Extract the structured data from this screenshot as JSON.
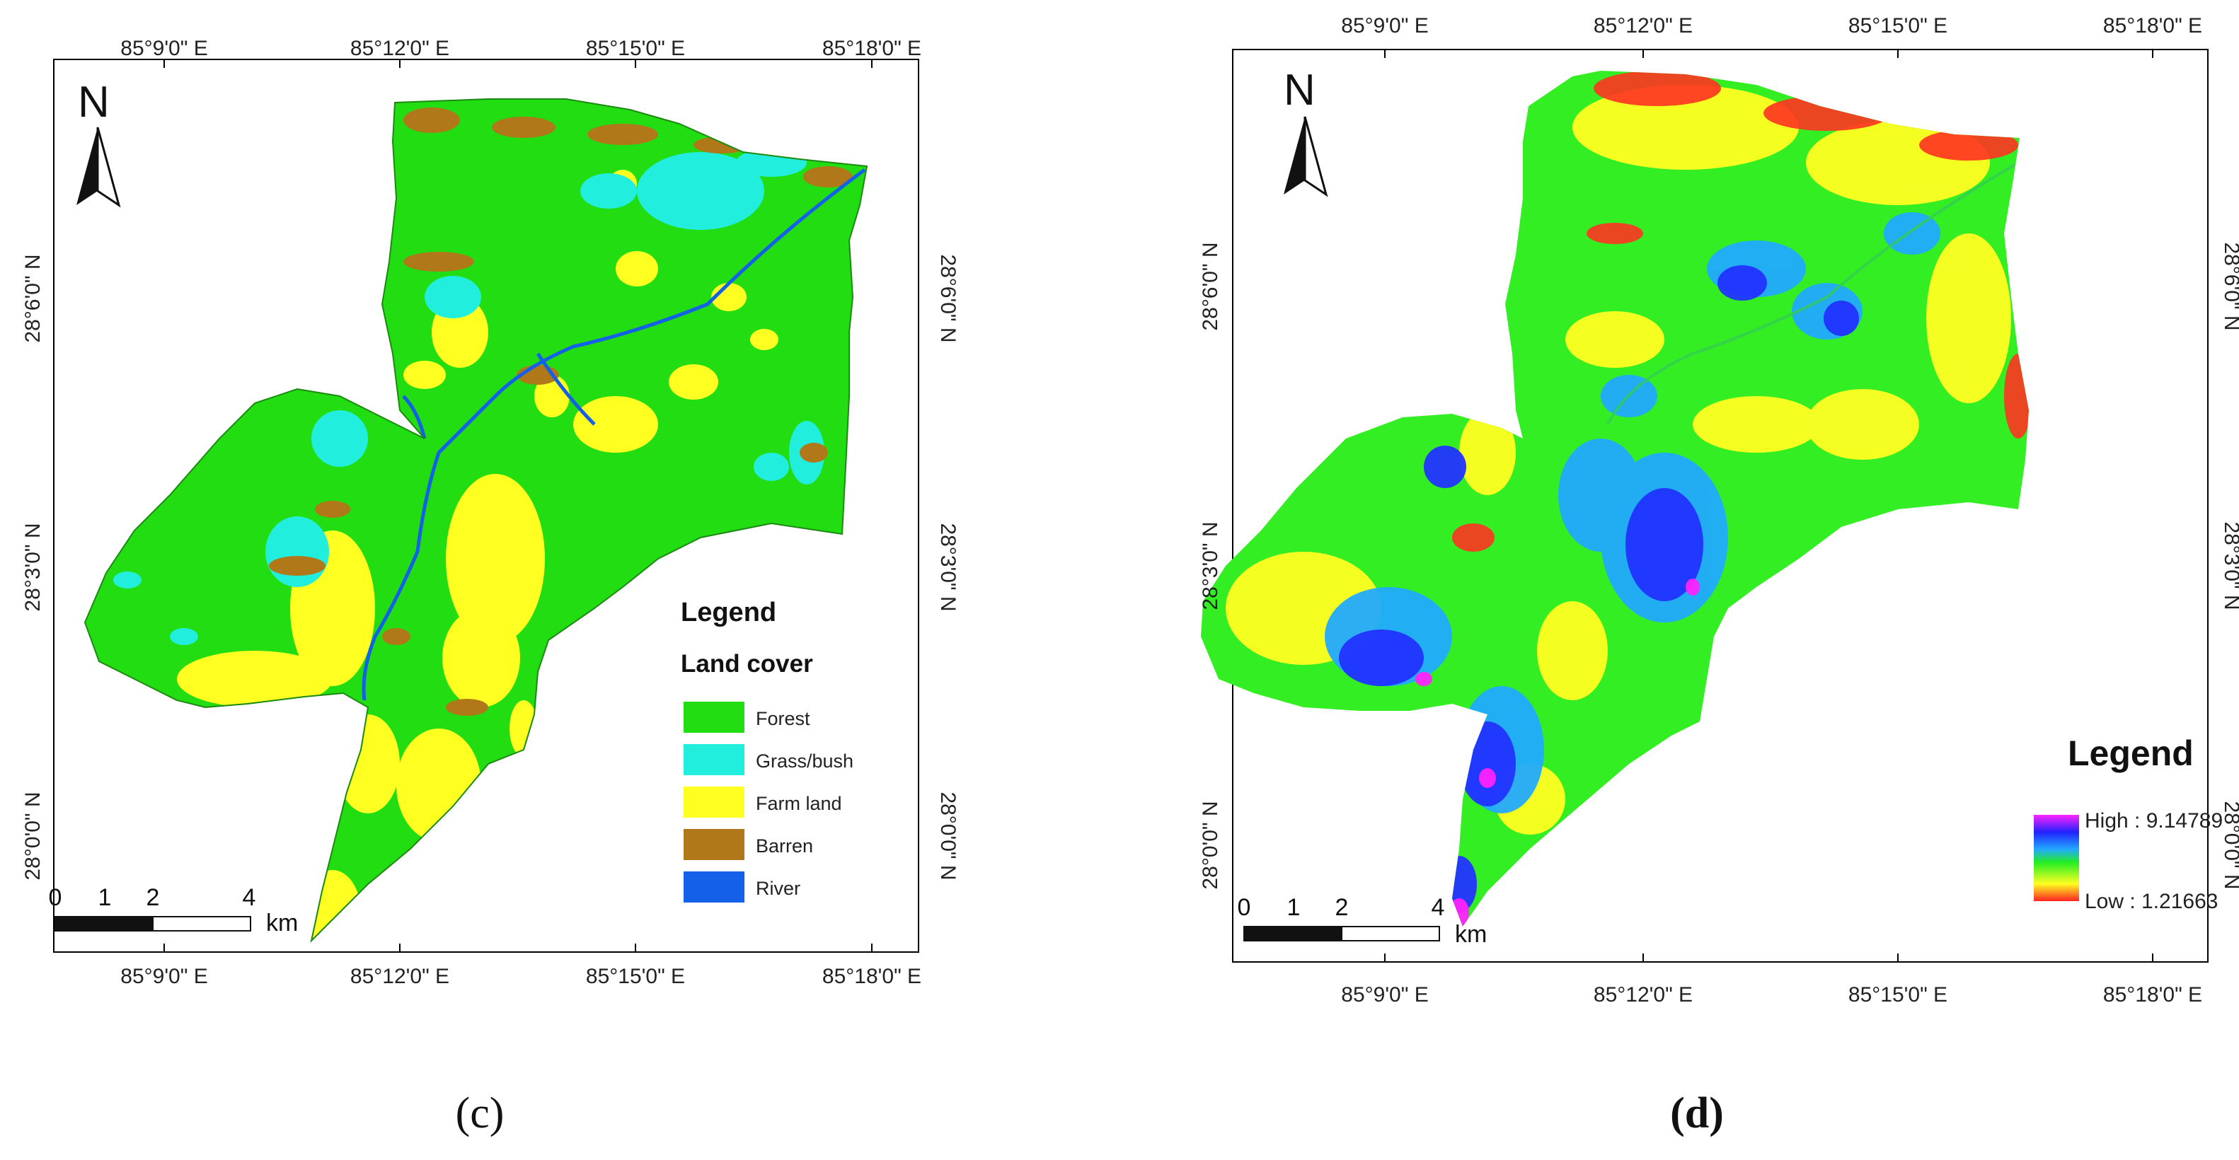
{
  "panel_c": {
    "label": "(c)",
    "north": "N",
    "legend": {
      "title": "Legend",
      "subtitle": "Land cover",
      "items": [
        {
          "label": "Forest",
          "color": "#22dd11"
        },
        {
          "label": "Grass/bush",
          "color": "#22eedd"
        },
        {
          "label": "Farm land",
          "color": "#ffff22"
        },
        {
          "label": "Barren",
          "color": "#b07818"
        },
        {
          "label": "River",
          "color": "#1560e8"
        }
      ]
    },
    "scale": {
      "ticks": [
        "0",
        "1",
        "2",
        "4"
      ],
      "unit": "km"
    },
    "axes": {
      "top": [
        "85°9'0\" E",
        "85°12'0\" E",
        "85°15'0\" E",
        "85°18'0\" E"
      ],
      "bottom": [
        "85°9'0\" E",
        "85°12'0\" E",
        "85°15'0\" E",
        "85°18'0\" E"
      ],
      "left": [
        "28°6'0\" N",
        "28°3'0\" N",
        "28°0'0\" N"
      ],
      "right": [
        "28°6'0\" N",
        "28°3'0\" N",
        "28°0'0\" N"
      ]
    }
  },
  "panel_d": {
    "label": "(d)",
    "north": "N",
    "legend": {
      "title": "Legend",
      "high": "High : 9.14789",
      "low": "Low : 1.21663",
      "gradient": [
        "#ff22ff",
        "#2222ff",
        "#22aaff",
        "#22ee22",
        "#ffff22",
        "#ff2222"
      ]
    },
    "scale": {
      "ticks": [
        "0",
        "1",
        "2",
        "4"
      ],
      "unit": "km"
    },
    "axes": {
      "top": [
        "85°9'0\" E",
        "85°12'0\" E",
        "85°15'0\" E",
        "85°18'0\" E"
      ],
      "bottom": [
        "85°9'0\" E",
        "85°12'0\" E",
        "85°15'0\" E",
        "85°18'0\" E"
      ],
      "left": [
        "28°6'0\" N",
        "28°3'0\" N",
        "28°0'0\" N"
      ],
      "right": [
        "28°6'0\" N",
        "28°3'0\" N",
        "28°0'0\" N"
      ]
    }
  }
}
